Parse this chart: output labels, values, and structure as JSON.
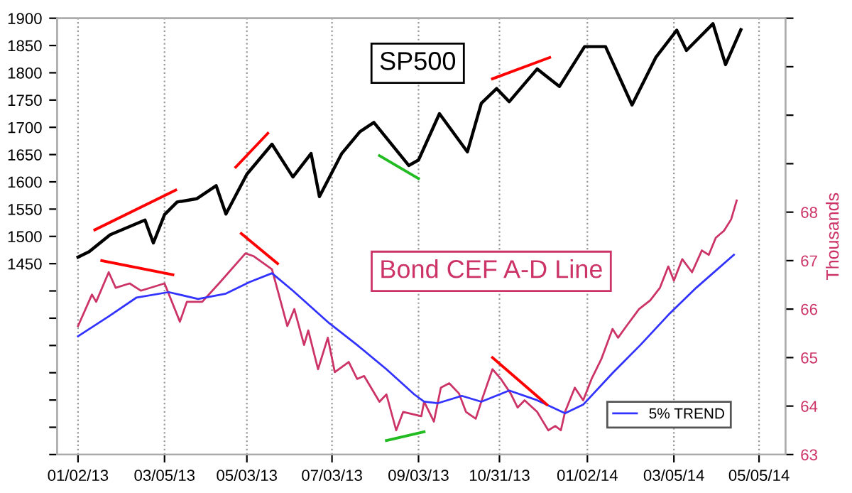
{
  "chart_data": {
    "type": "line",
    "xlim": [
      "2012-12-18",
      "2014-05-24"
    ],
    "xticks": [
      {
        "value": "2013-01-02",
        "label": "01/02/13"
      },
      {
        "value": "2013-03-05",
        "label": "03/05/13"
      },
      {
        "value": "2013-05-03",
        "label": "05/03/13"
      },
      {
        "value": "2013-07-03",
        "label": "07/03/13"
      },
      {
        "value": "2013-09-03",
        "label": "09/03/13"
      },
      {
        "value": "2013-10-31",
        "label": "10/31/13"
      },
      {
        "value": "2014-01-02",
        "label": "01/02/14"
      },
      {
        "value": "2014-03-05",
        "label": "03/05/14"
      },
      {
        "value": "2014-05-05",
        "label": "05/05/14"
      }
    ],
    "ylim": [
      1100,
      1900
    ],
    "yticks": [
      {
        "value": 1100,
        "label": null
      },
      {
        "value": 1150,
        "label": null
      },
      {
        "value": 1200,
        "label": null
      },
      {
        "value": 1250,
        "label": null
      },
      {
        "value": 1300,
        "label": null
      },
      {
        "value": 1350,
        "label": null
      },
      {
        "value": 1400,
        "label": null
      },
      1450,
      1500,
      1550,
      1600,
      1650,
      1700,
      1750,
      1800,
      1850,
      1900
    ],
    "y2lim": [
      63,
      72
    ],
    "y2ticks": [
      63,
      64,
      65,
      66,
      67,
      68,
      {
        "value": 69,
        "label": null
      },
      {
        "value": 70,
        "label": null
      },
      {
        "value": 71,
        "label": null
      },
      {
        "value": 72,
        "label": null
      }
    ],
    "y2label": "Thousands",
    "grid": "x",
    "legend": "bottom right",
    "annotations": [
      "SP500",
      "Bond CEF A-D Line"
    ],
    "series": [
      {
        "color": "#000000",
        "x": [
          "2013-01-02",
          "2013-01-10",
          "2013-01-25",
          "2013-02-19",
          "2013-02-25",
          "2013-03-05",
          "2013-03-14",
          "2013-03-28",
          "2013-04-11",
          "2013-04-18",
          "2013-05-03",
          "2013-05-21",
          "2013-06-05",
          "2013-06-18",
          "2013-06-24",
          "2013-07-10",
          "2013-07-23",
          "2013-08-02",
          "2013-08-27",
          "2013-09-03",
          "2013-09-18",
          "2013-10-08",
          "2013-10-18",
          "2013-10-29",
          "2013-11-07",
          "2013-11-27",
          "2013-12-13",
          "2013-12-31",
          "2014-01-15",
          "2014-02-03",
          "2014-02-20",
          "2014-03-07",
          "2014-03-14",
          "2014-04-02",
          "2014-04-11",
          "2014-04-22"
        ],
        "values": [
          1462,
          1472,
          1503,
          1530,
          1488,
          1540,
          1563,
          1569,
          1593,
          1541,
          1614,
          1669,
          1609,
          1652,
          1573,
          1652,
          1692,
          1709,
          1630,
          1640,
          1725,
          1655,
          1744,
          1771,
          1747,
          1807,
          1775,
          1848,
          1848,
          1741,
          1828,
          1878,
          1841,
          1890,
          1815,
          1879
        ]
      },
      {
        "color": "#cc3366",
        "axis": "y2",
        "x": [
          "2013-01-02",
          "2013-01-12",
          "2013-01-15",
          "2013-01-24",
          "2013-01-29",
          "2013-02-08",
          "2013-02-16",
          "2013-03-05",
          "2013-03-16",
          "2013-03-21",
          "2013-04-01",
          "2013-04-13",
          "2013-05-02",
          "2013-05-08",
          "2013-05-21",
          "2013-06-01",
          "2013-06-06",
          "2013-06-13",
          "2013-06-16",
          "2013-06-23",
          "2013-06-30",
          "2013-07-05",
          "2013-07-15",
          "2013-07-21",
          "2013-07-26",
          "2013-08-06",
          "2013-08-11",
          "2013-08-18",
          "2013-08-23",
          "2013-09-05",
          "2013-09-07",
          "2013-09-14",
          "2013-09-19",
          "2013-09-25",
          "2013-10-02",
          "2013-10-07",
          "2013-10-14",
          "2013-10-19",
          "2013-10-26",
          "2013-11-01",
          "2013-11-08",
          "2013-11-13",
          "2013-11-18",
          "2013-11-27",
          "2013-12-05",
          "2013-12-10",
          "2013-12-14",
          "2013-12-17",
          "2013-12-24",
          "2013-12-30",
          "2014-01-05",
          "2014-01-12",
          "2014-01-20",
          "2014-01-24",
          "2014-01-30",
          "2014-02-08",
          "2014-02-16",
          "2014-02-23",
          "2014-03-01",
          "2014-03-05",
          "2014-03-11",
          "2014-03-18",
          "2014-03-25",
          "2014-03-30",
          "2014-04-04",
          "2014-04-10",
          "2014-04-15",
          "2014-04-19"
        ],
        "values": [
          65.65,
          66.3,
          66.15,
          66.76,
          66.44,
          66.53,
          66.38,
          66.53,
          65.74,
          66.15,
          66.15,
          66.53,
          67.15,
          67.09,
          66.82,
          65.65,
          66.0,
          65.26,
          65.56,
          64.76,
          65.41,
          64.7,
          64.91,
          64.56,
          64.62,
          64.09,
          64.24,
          63.5,
          63.88,
          63.79,
          64.09,
          63.68,
          64.38,
          64.47,
          64.26,
          63.88,
          63.74,
          64.18,
          64.76,
          64.56,
          64.26,
          63.97,
          64.12,
          63.88,
          63.5,
          63.59,
          63.5,
          63.88,
          64.38,
          64.12,
          64.56,
          64.97,
          65.59,
          65.41,
          65.65,
          66.0,
          66.18,
          66.44,
          66.88,
          66.59,
          67.03,
          66.76,
          67.21,
          67.12,
          67.47,
          67.62,
          67.85,
          68.24
        ]
      },
      {
        "name": "5% TREND",
        "color": "#3333ff",
        "axis": "y2",
        "x": [
          "2013-01-02",
          "2013-01-24",
          "2013-02-13",
          "2013-03-08",
          "2013-03-29",
          "2013-04-18",
          "2013-05-05",
          "2013-05-21",
          "2013-06-05",
          "2013-07-01",
          "2013-07-21",
          "2013-08-11",
          "2013-08-31",
          "2013-09-07",
          "2013-09-17",
          "2013-10-04",
          "2013-10-18",
          "2013-11-07",
          "2013-11-27",
          "2013-12-17",
          "2013-12-30",
          "2014-01-20",
          "2014-02-09",
          "2014-03-01",
          "2014-03-21",
          "2014-04-17"
        ],
        "values": [
          65.44,
          65.85,
          66.24,
          66.35,
          66.21,
          66.32,
          66.56,
          66.74,
          66.38,
          65.71,
          65.26,
          64.76,
          64.24,
          64.09,
          64.06,
          64.21,
          64.09,
          64.32,
          64.12,
          63.85,
          64.03,
          64.68,
          65.26,
          65.88,
          66.44,
          67.12
        ]
      },
      {
        "color": "#ff0000",
        "x": [
          "2013-01-14",
          "2013-03-13"
        ],
        "values": [
          1512,
          1585
        ]
      },
      {
        "color": "#ff0000",
        "x": [
          "2013-04-25",
          "2013-05-18"
        ],
        "values": [
          1627,
          1689
        ]
      },
      {
        "color": "#22bb22",
        "x": [
          "2013-08-06",
          "2013-09-03"
        ],
        "values": [
          1648,
          1606
        ]
      },
      {
        "color": "#ff0000",
        "x": [
          "2013-10-26",
          "2013-12-06"
        ],
        "values": [
          1789,
          1828
        ]
      },
      {
        "color": "#ff0000",
        "axis": "y2",
        "x": [
          "2013-01-19",
          "2013-03-11"
        ],
        "values": [
          67.0,
          66.71
        ]
      },
      {
        "color": "#ff0000",
        "axis": "y2",
        "x": [
          "2013-04-29",
          "2013-05-25"
        ],
        "values": [
          67.56,
          66.94
        ]
      },
      {
        "color": "#22bb22",
        "axis": "y2",
        "x": [
          "2013-08-11",
          "2013-09-07"
        ],
        "values": [
          63.29,
          63.47
        ]
      },
      {
        "color": "#ff0000",
        "axis": "y2",
        "x": [
          "2013-10-26",
          "2013-12-04"
        ],
        "values": [
          65.0,
          64.03
        ]
      }
    ]
  }
}
